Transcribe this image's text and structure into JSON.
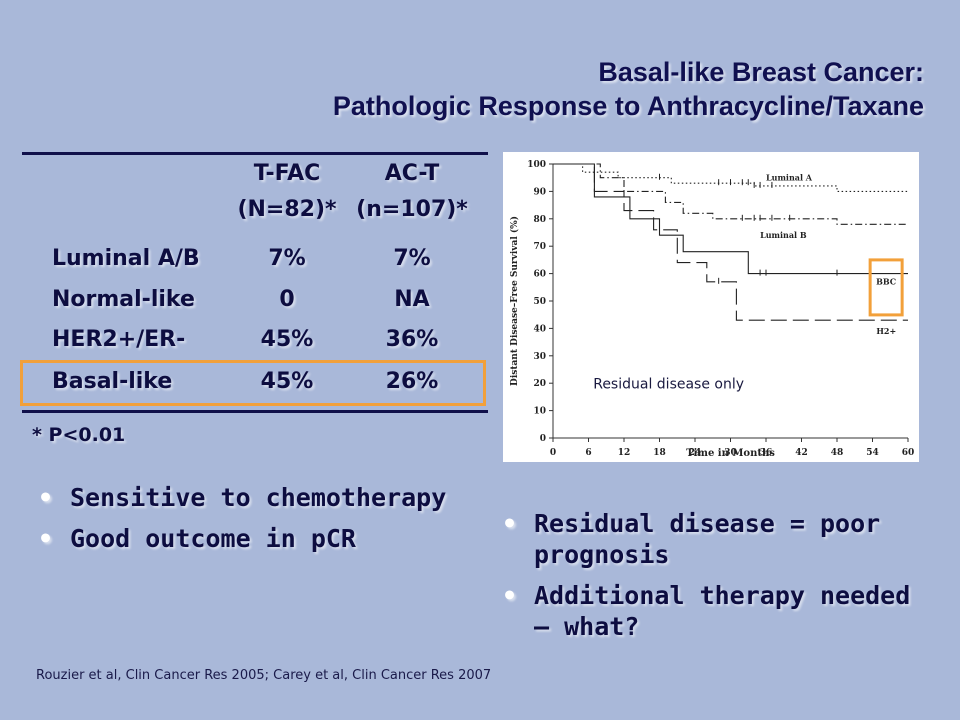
{
  "title": {
    "line1": "Basal-like Breast Cancer:",
    "line2": "Pathologic Response to Anthracycline/Taxane"
  },
  "table": {
    "headers": [
      {
        "line1": "T-FAC",
        "line2": "(N=82)*"
      },
      {
        "line1": "AC-T",
        "line2": "(n=107)*"
      }
    ],
    "rows": [
      {
        "label": "Luminal A/B",
        "tfac": "7%",
        "act": "7%"
      },
      {
        "label": "Normal-like",
        "tfac": "0",
        "act": "NA"
      },
      {
        "label": "HER2+/ER-",
        "tfac": "45%",
        "act": "36%"
      },
      {
        "label": "Basal-like",
        "tfac": "45%",
        "act": "26%"
      }
    ],
    "footnote": "* P<0.01"
  },
  "left_bullets": [
    "Sensitive to chemotherapy",
    "Good outcome in pCR"
  ],
  "right_bullets": [
    "Residual disease = poor prognosis",
    "Additional therapy needed – what?"
  ],
  "citation": "Rouzier et al, Clin Cancer Res 2005; Carey et al, Clin Cancer Res 2007",
  "chart_data": {
    "type": "line",
    "xlabel": "Time in Months",
    "ylabel": "Distant Disease–Free Survival (%)",
    "xlim": [
      0,
      60
    ],
    "ylim": [
      0,
      100
    ],
    "x_ticks": [
      0,
      6,
      12,
      18,
      24,
      30,
      36,
      42,
      48,
      54,
      60
    ],
    "y_ticks": [
      0,
      10,
      20,
      30,
      40,
      50,
      60,
      70,
      80,
      90,
      100
    ],
    "annotation": "Residual disease only",
    "highlight_color": "#f2a03a",
    "series": [
      {
        "name": "Luminal A",
        "style": "dotted",
        "x": [
          0,
          5,
          5,
          11,
          11,
          20,
          20,
          34,
          34,
          48,
          48,
          60
        ],
        "y": [
          100,
          100,
          97,
          97,
          95,
          95,
          93,
          93,
          92,
          92,
          90,
          90
        ]
      },
      {
        "name": "Luminal B",
        "style": "dash-dot",
        "x": [
          0,
          8,
          8,
          12,
          12,
          19,
          19,
          22,
          22,
          27,
          27,
          48,
          48,
          60
        ],
        "y": [
          100,
          100,
          95,
          95,
          90,
          90,
          86,
          86,
          82,
          82,
          80,
          80,
          78,
          78
        ]
      },
      {
        "name": "BBC",
        "style": "solid",
        "x": [
          0,
          7,
          7,
          13,
          13,
          18,
          18,
          22,
          22,
          33,
          33,
          60
        ],
        "y": [
          100,
          100,
          88,
          88,
          80,
          80,
          74,
          74,
          68,
          68,
          60,
          60
        ]
      },
      {
        "name": "H2+",
        "style": "long-dash",
        "x": [
          0,
          7,
          7,
          12,
          12,
          17,
          17,
          21,
          21,
          26,
          26,
          31,
          31,
          60
        ],
        "y": [
          100,
          100,
          90,
          90,
          83,
          83,
          76,
          76,
          64,
          64,
          57,
          57,
          43,
          43
        ]
      }
    ]
  }
}
